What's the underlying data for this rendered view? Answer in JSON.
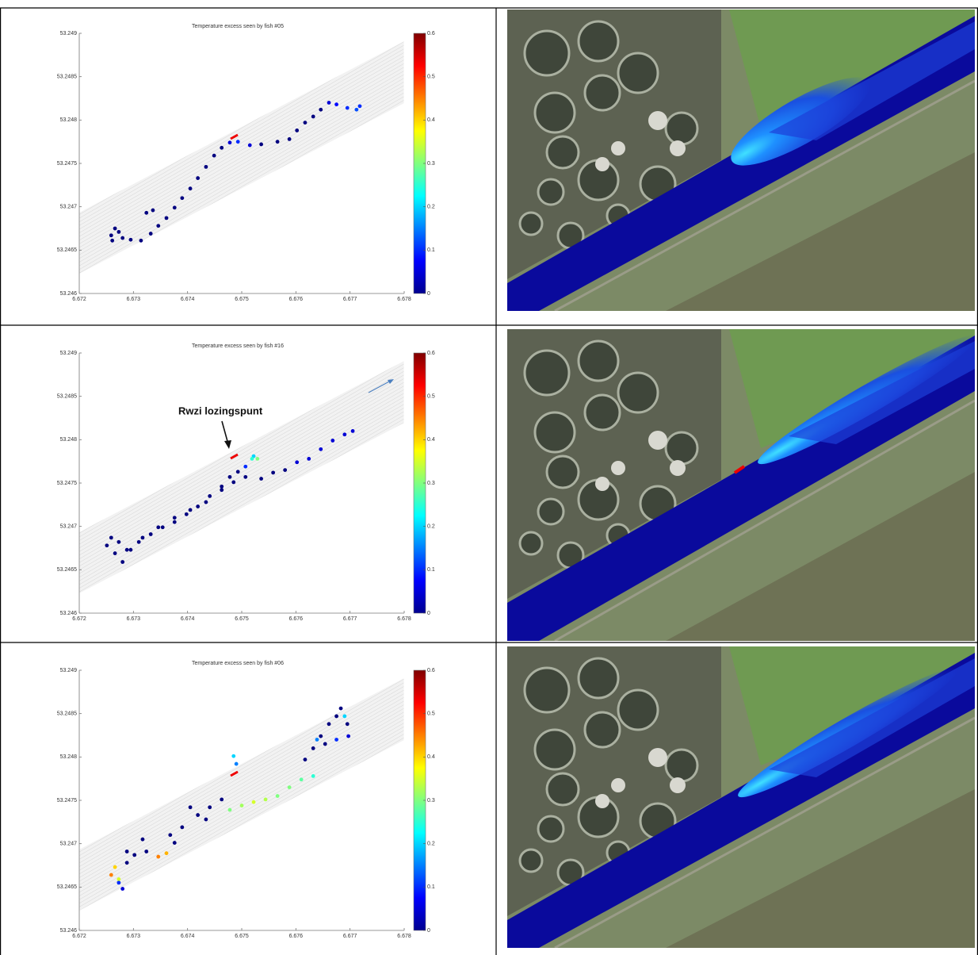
{
  "chart_data": [
    {
      "type": "scatter",
      "title": "Temperature excess seen by fish #05",
      "x": [
        6.67259,
        6.67266,
        6.67273,
        6.67261,
        6.6728,
        6.67295,
        6.67314,
        6.67324,
        6.67336,
        6.67332,
        6.67346,
        6.67361,
        6.67376,
        6.6739,
        6.67405,
        6.67419,
        6.67434,
        6.67449,
        6.67463,
        6.67478,
        6.67493,
        6.67515,
        6.67536,
        6.67566,
        6.67588,
        6.67602,
        6.67617,
        6.67632,
        6.67646,
        6.67661,
        6.67675,
        6.67695,
        6.67712,
        6.67718
      ],
      "y": [
        53.24667,
        53.24675,
        53.24671,
        53.24661,
        53.24664,
        53.24662,
        53.24661,
        53.24693,
        53.24696,
        53.24669,
        53.24678,
        53.24687,
        53.24699,
        53.2471,
        53.24721,
        53.24733,
        53.24746,
        53.24759,
        53.24768,
        53.24774,
        53.24775,
        53.24771,
        53.24772,
        53.24775,
        53.24778,
        53.24788,
        53.24797,
        53.24804,
        53.24812,
        53.2482,
        53.24818,
        53.24814,
        53.24812,
        53.24816
      ],
      "values": [
        0,
        0,
        0,
        0,
        0,
        0,
        0,
        0,
        0,
        0,
        0,
        0,
        0,
        0,
        0,
        0,
        0,
        0,
        0,
        0.05,
        0.1,
        0.05,
        0,
        0,
        0,
        0,
        0,
        0,
        0,
        0.05,
        0.08,
        0.1,
        0.12,
        0.1
      ],
      "xlim": [
        6.672,
        6.678
      ],
      "ylim": [
        53.246,
        53.249
      ],
      "xticks": [
        6.672,
        6.673,
        6.674,
        6.675,
        6.676,
        6.677,
        6.678
      ],
      "yticks": [
        53.246,
        53.2465,
        53.247,
        53.2475,
        53.248,
        53.2485,
        53.249
      ],
      "clim": [
        0,
        0.6
      ],
      "cticks": [
        0,
        0.1,
        0.2,
        0.3,
        0.4,
        0.5,
        0.6
      ]
    },
    {
      "type": "scatter",
      "title": "Temperature excess seen by fish #16",
      "annotation": "Rwzi lozingspunt",
      "x": [
        6.67251,
        6.67259,
        6.67273,
        6.67266,
        6.6728,
        6.67295,
        6.6731,
        6.67332,
        6.67354,
        6.67376,
        6.67398,
        6.67419,
        6.67441,
        6.67463,
        6.67478,
        6.67493,
        6.67485,
        6.67463,
        6.67434,
        6.67405,
        6.67376,
        6.67346,
        6.67317,
        6.67288,
        6.67507,
        6.67522,
        6.67529,
        6.67519,
        6.67507,
        6.67536,
        6.67558,
        6.6758,
        6.67602,
        6.67624,
        6.67646,
        6.67668,
        6.6769,
        6.67705
      ],
      "y": [
        53.24678,
        53.24687,
        53.24682,
        53.24669,
        53.24659,
        53.24673,
        53.24682,
        53.24691,
        53.24699,
        53.24705,
        53.24714,
        53.24723,
        53.24735,
        53.24746,
        53.24757,
        53.24763,
        53.24751,
        53.24742,
        53.24728,
        53.24719,
        53.2471,
        53.24699,
        53.24687,
        53.24673,
        53.24769,
        53.24781,
        53.24778,
        53.24778,
        53.24757,
        53.24755,
        53.24762,
        53.24765,
        53.24774,
        53.24778,
        53.24789,
        53.24799,
        53.24806,
        53.2481
      ],
      "values": [
        0,
        0,
        0,
        0,
        0,
        0,
        0,
        0,
        0,
        0,
        0,
        0,
        0,
        0,
        0,
        0,
        0,
        0,
        0,
        0,
        0,
        0,
        0,
        0,
        0.1,
        0.2,
        0.3,
        0.25,
        0,
        0,
        0,
        0,
        0.05,
        0.05,
        0.05,
        0.05,
        0.05,
        0.05
      ],
      "xlim": [
        6.672,
        6.678
      ],
      "ylim": [
        53.246,
        53.249
      ],
      "xticks": [
        6.672,
        6.673,
        6.674,
        6.675,
        6.676,
        6.677,
        6.678
      ],
      "yticks": [
        53.246,
        53.2465,
        53.247,
        53.2475,
        53.248,
        53.2485,
        53.249
      ],
      "clim": [
        0,
        0.6
      ],
      "cticks": [
        0,
        0.1,
        0.2,
        0.3,
        0.4,
        0.5,
        0.6
      ]
    },
    {
      "type": "scatter",
      "title": "Temperature excess seen by fish #06",
      "x": [
        6.67259,
        6.67266,
        6.67273,
        6.67288,
        6.67302,
        6.67324,
        6.67346,
        6.67361,
        6.67368,
        6.6739,
        6.67419,
        6.67441,
        6.67463,
        6.67405,
        6.67434,
        6.67376,
        6.67317,
        6.67288,
        6.67273,
        6.6728,
        6.67478,
        6.675,
        6.67522,
        6.67544,
        6.67566,
        6.67588,
        6.6761,
        6.67632,
        6.67485,
        6.6749,
        6.67617,
        6.67632,
        6.67646,
        6.67661,
        6.67675,
        6.67683,
        6.67695,
        6.67697,
        6.67675,
        6.67654,
        6.67639,
        6.6769
      ],
      "y": [
        53.24664,
        53.24673,
        53.24659,
        53.24678,
        53.24687,
        53.24691,
        53.24685,
        53.24689,
        53.2471,
        53.24719,
        53.24733,
        53.24742,
        53.24751,
        53.24742,
        53.24728,
        53.24701,
        53.24705,
        53.24691,
        53.24655,
        53.24648,
        53.24739,
        53.24744,
        53.24748,
        53.24751,
        53.24755,
        53.24765,
        53.24774,
        53.24778,
        53.24801,
        53.24792,
        53.24797,
        53.2481,
        53.24824,
        53.24838,
        53.24847,
        53.24856,
        53.24838,
        53.24824,
        53.2482,
        53.24815,
        53.2482,
        53.24847
      ],
      "values": [
        0.45,
        0.4,
        0.35,
        0,
        0,
        0,
        0.45,
        0.42,
        0,
        0,
        0,
        0,
        0,
        0,
        0,
        0,
        0,
        0,
        0.1,
        0.05,
        0.3,
        0.32,
        0.35,
        0.33,
        0.3,
        0.3,
        0.28,
        0.25,
        0.2,
        0.15,
        0,
        0,
        0,
        0,
        0,
        0,
        0,
        0.05,
        0.1,
        0,
        0.15,
        0.2
      ],
      "xlim": [
        6.672,
        6.678
      ],
      "ylim": [
        53.246,
        53.249
      ],
      "xticks": [
        6.672,
        6.673,
        6.674,
        6.675,
        6.676,
        6.677,
        6.678
      ],
      "yticks": [
        53.246,
        53.2465,
        53.247,
        53.2475,
        53.248,
        53.2485,
        53.249
      ],
      "clim": [
        0,
        0.6
      ],
      "cticks": [
        0,
        0.1,
        0.2,
        0.3,
        0.4,
        0.5,
        0.6
      ]
    }
  ]
}
